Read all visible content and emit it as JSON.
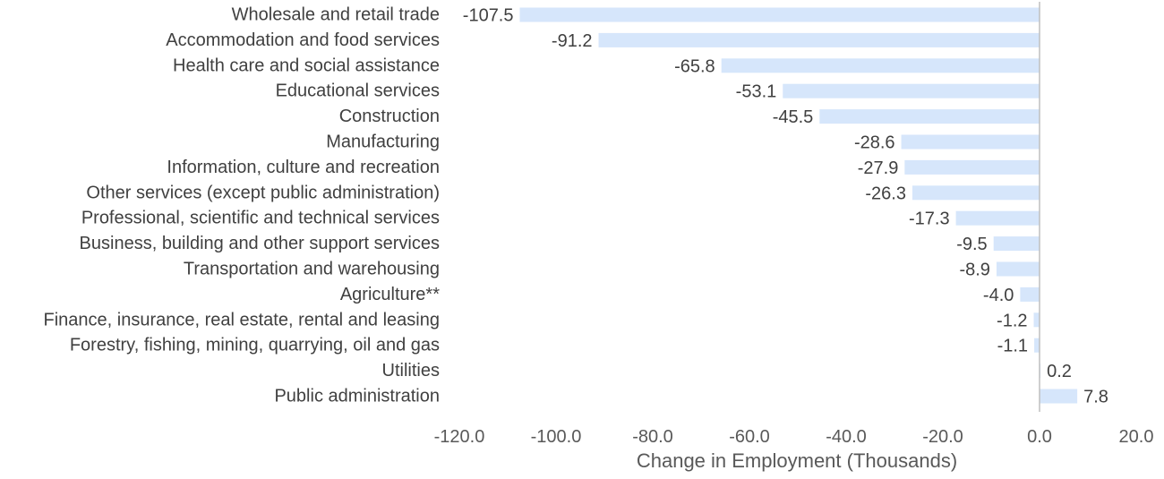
{
  "chart_data": {
    "type": "bar",
    "orientation": "horizontal",
    "categories": [
      "Wholesale and retail trade",
      "Accommodation and food services",
      "Health care and social assistance",
      "Educational services",
      "Construction",
      "Manufacturing",
      "Information, culture and recreation",
      "Other services (except public administration)",
      "Professional, scientific and technical services",
      "Business, building and other support services",
      "Transportation and warehousing",
      "Agriculture**",
      "Finance, insurance, real estate, rental and leasing",
      "Forestry, fishing, mining, quarrying, oil and gas",
      "Utilities",
      "Public administration"
    ],
    "values": [
      -107.5,
      -91.2,
      -65.8,
      -53.1,
      -45.5,
      -28.6,
      -27.9,
      -26.3,
      -17.3,
      -9.5,
      -8.9,
      -4.0,
      -1.2,
      -1.1,
      0.2,
      7.8
    ],
    "value_labels": [
      "-107.5",
      "-91.2",
      "-65.8",
      "-53.1",
      "-45.5",
      "-28.6",
      "-27.9",
      "-26.3",
      "-17.3",
      "-9.5",
      "-8.9",
      "-4.0",
      "-1.2",
      "-1.1",
      "0.2",
      "7.8"
    ],
    "xlim": [
      -120,
      20
    ],
    "xticks": [
      -120,
      -100,
      -80,
      -60,
      -40,
      -20,
      0,
      20
    ],
    "xtick_labels": [
      "-120.0",
      "-100.0",
      "-80.0",
      "-60.0",
      "-40.0",
      "-20.0",
      "0.0",
      "20.0"
    ],
    "xlabel": "Change in Employment (Thousands)",
    "title": "",
    "grid": false,
    "legend": "none",
    "bar_color": "#d6e6fb",
    "axis_color": "#bfbfbf"
  }
}
